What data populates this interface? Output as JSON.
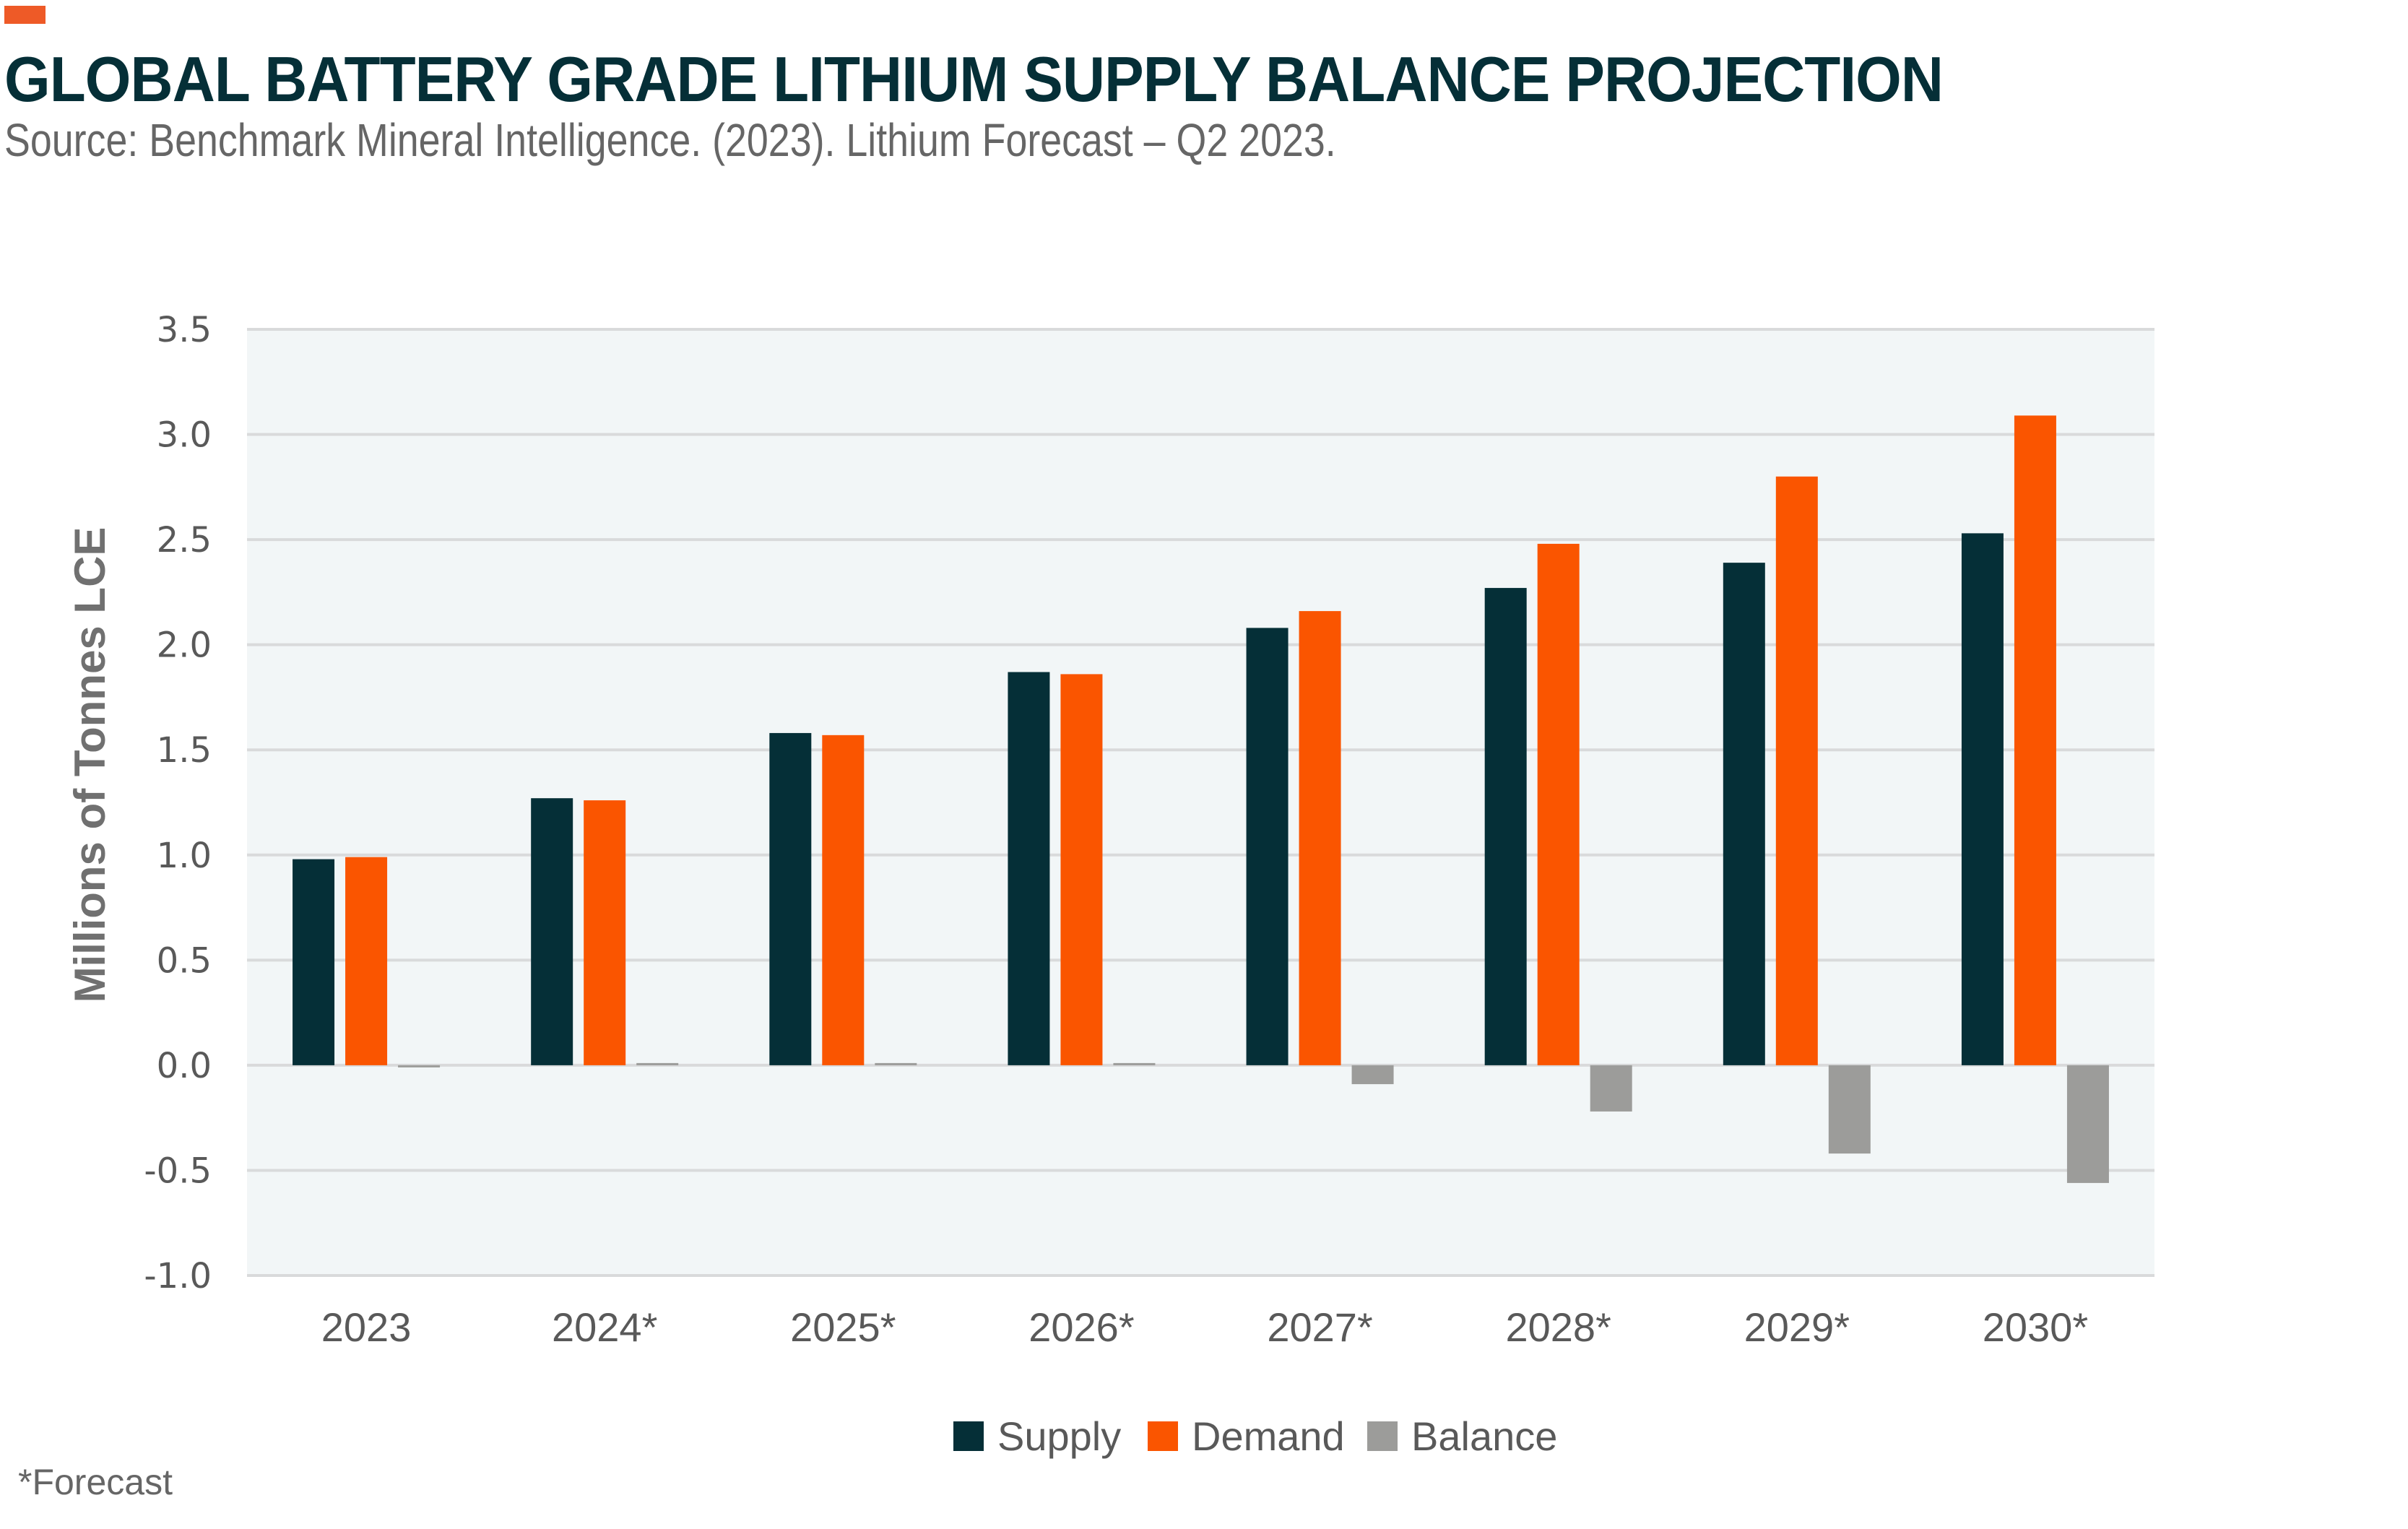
{
  "header": {
    "title": "GLOBAL BATTERY GRADE LITHIUM SUPPLY BALANCE PROJECTION",
    "subtitle": "Source: Benchmark Mineral Intelligence. (2023). Lithium Forecast – Q2 2023."
  },
  "footnote": "*Forecast",
  "colors": {
    "accent": "#EE5A27",
    "title": "#052F37",
    "plot_background": "#F2F6F7",
    "grid": "#D9DADB"
  },
  "chart_data": {
    "type": "bar",
    "title": "GLOBAL BATTERY GRADE LITHIUM SUPPLY BALANCE PROJECTION",
    "xlabel": "",
    "ylabel": "Millions of Tonnes LCE",
    "categories": [
      "2023",
      "2024*",
      "2025*",
      "2026*",
      "2027*",
      "2028*",
      "2029*",
      "2030*"
    ],
    "series": [
      {
        "name": "Supply",
        "color": "#052F37",
        "values": [
          0.98,
          1.27,
          1.58,
          1.87,
          2.08,
          2.27,
          2.39,
          2.53
        ]
      },
      {
        "name": "Demand",
        "color": "#FA5500",
        "values": [
          0.99,
          1.26,
          1.57,
          1.86,
          2.16,
          2.48,
          2.8,
          3.09
        ]
      },
      {
        "name": "Balance",
        "color": "#9C9C9A",
        "values": [
          -0.01,
          0.01,
          0.01,
          0.01,
          -0.09,
          -0.22,
          -0.42,
          -0.56
        ]
      }
    ],
    "ylim": [
      -1.0,
      3.5
    ],
    "yticks": [
      3.5,
      3.0,
      2.5,
      2.0,
      1.5,
      1.0,
      0.5,
      0.0,
      -0.5,
      -1.0
    ],
    "ytick_labels": [
      "3.5",
      "3.0",
      "2.5",
      "2.0",
      "1.5",
      "1.0",
      "0.5",
      "0.0",
      "-0.5",
      "-1.0"
    ],
    "grid": true,
    "legend_position": "bottom-center",
    "legend": [
      "Supply",
      "Demand",
      "Balance"
    ]
  }
}
